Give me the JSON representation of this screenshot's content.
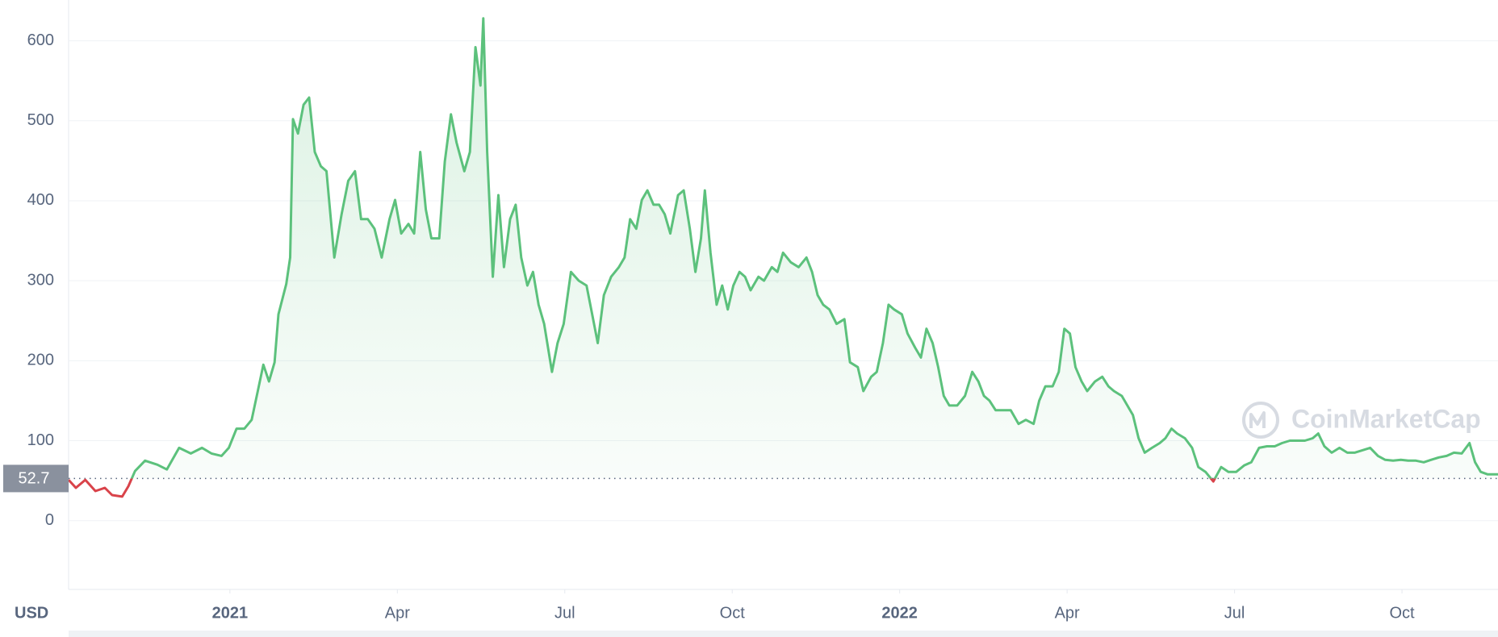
{
  "chart_data": {
    "type": "line",
    "currency_label": "USD",
    "watermark": "CoinMarketCap",
    "color": "#5cc17c",
    "down_color": "#d9434a",
    "reference_line": 52.7,
    "grid": true,
    "xlim": [
      -2.89,
      22.72
    ],
    "xticks": [
      {
        "value": 0,
        "label": "2021"
      },
      {
        "value": 3,
        "label": "Apr"
      },
      {
        "value": 6,
        "label": "Jul"
      },
      {
        "value": 9,
        "label": "Oct"
      },
      {
        "value": 12,
        "label": "2022"
      },
      {
        "value": 15,
        "label": "Apr"
      },
      {
        "value": 18,
        "label": "Jul"
      },
      {
        "value": 21,
        "label": "Oct"
      }
    ],
    "ylim": [
      -86,
      651
    ],
    "yticks": [
      0,
      100,
      200,
      300,
      400,
      500,
      600
    ],
    "x": [
      -2.89,
      -2.76,
      -2.59,
      -2.41,
      -2.24,
      -2.11,
      -1.93,
      -1.82,
      -1.7,
      -1.52,
      -1.3,
      -1.13,
      -0.91,
      -0.7,
      -0.5,
      -0.33,
      -0.15,
      -0.02,
      0.12,
      0.26,
      0.39,
      0.5,
      0.6,
      0.7,
      0.8,
      0.87,
      1.01,
      1.08,
      1.13,
      1.22,
      1.32,
      1.42,
      1.52,
      1.63,
      1.73,
      1.87,
      2.0,
      2.12,
      2.24,
      2.35,
      2.47,
      2.59,
      2.72,
      2.86,
      2.96,
      3.07,
      3.2,
      3.3,
      3.41,
      3.51,
      3.61,
      3.75,
      3.85,
      3.96,
      4.06,
      4.2,
      4.3,
      4.4,
      4.49,
      4.54,
      4.61,
      4.71,
      4.81,
      4.91,
      5.02,
      5.12,
      5.22,
      5.33,
      5.43,
      5.53,
      5.63,
      5.77,
      5.87,
      5.98,
      6.11,
      6.25,
      6.39,
      6.49,
      6.59,
      6.7,
      6.83,
      6.97,
      7.07,
      7.17,
      7.28,
      7.38,
      7.48,
      7.59,
      7.69,
      7.79,
      7.89,
      8.03,
      8.13,
      8.24,
      8.34,
      8.44,
      8.51,
      8.61,
      8.72,
      8.82,
      8.92,
      9.02,
      9.13,
      9.23,
      9.33,
      9.47,
      9.57,
      9.71,
      9.81,
      9.91,
      10.05,
      10.19,
      10.33,
      10.43,
      10.53,
      10.63,
      10.74,
      10.87,
      11.01,
      11.11,
      11.25,
      11.35,
      11.49,
      11.59,
      11.7,
      11.8,
      11.9,
      12.04,
      12.14,
      12.28,
      12.38,
      12.48,
      12.59,
      12.69,
      12.79,
      12.89,
      13.03,
      13.17,
      13.3,
      13.41,
      13.51,
      13.61,
      13.72,
      13.85,
      13.99,
      14.13,
      14.26,
      14.4,
      14.5,
      14.61,
      14.74,
      14.85,
      14.95,
      15.05,
      15.15,
      15.26,
      15.36,
      15.5,
      15.63,
      15.74,
      15.84,
      15.98,
      16.08,
      16.18,
      16.28,
      16.39,
      16.52,
      16.66,
      16.76,
      16.87,
      16.97,
      17.11,
      17.24,
      17.35,
      17.48,
      17.62,
      17.76,
      17.89,
      18.03,
      18.17,
      18.3,
      18.44,
      18.58,
      18.72,
      18.85,
      18.99,
      19.13,
      19.26,
      19.4,
      19.5,
      19.61,
      19.74,
      19.88,
      20.02,
      20.15,
      20.29,
      20.43,
      20.57,
      20.7,
      20.84,
      20.98,
      21.11,
      21.25,
      21.39,
      21.52,
      21.66,
      21.8,
      21.93,
      22.07,
      22.21,
      22.31,
      22.41,
      22.53,
      22.72
    ],
    "values": [
      51,
      41,
      51,
      37,
      41,
      32,
      30,
      43,
      62,
      75,
      70,
      64,
      91,
      84,
      91,
      84,
      81,
      91,
      115,
      115,
      126,
      162,
      195,
      174,
      198,
      258,
      296,
      329,
      502,
      484,
      520,
      529,
      461,
      443,
      437,
      329,
      383,
      425,
      437,
      377,
      377,
      365,
      329,
      377,
      401,
      359,
      371,
      359,
      461,
      389,
      353,
      353,
      449,
      508,
      473,
      437,
      461,
      592,
      544,
      628,
      461,
      305,
      407,
      317,
      377,
      395,
      329,
      294,
      311,
      270,
      246,
      186,
      222,
      246,
      311,
      300,
      294,
      258,
      222,
      282,
      305,
      317,
      329,
      377,
      365,
      401,
      413,
      395,
      395,
      383,
      359,
      407,
      413,
      365,
      311,
      353,
      413,
      335,
      270,
      294,
      264,
      294,
      311,
      305,
      288,
      305,
      300,
      317,
      311,
      335,
      323,
      317,
      329,
      311,
      282,
      270,
      264,
      246,
      252,
      198,
      192,
      162,
      180,
      186,
      222,
      270,
      264,
      258,
      234,
      216,
      204,
      240,
      222,
      192,
      156,
      144,
      144,
      156,
      186,
      174,
      156,
      150,
      138,
      138,
      138,
      121,
      126,
      121,
      150,
      168,
      168,
      186,
      240,
      234,
      192,
      174,
      162,
      174,
      180,
      168,
      162,
      156,
      144,
      132,
      103,
      85,
      91,
      97,
      103,
      115,
      109,
      103,
      91,
      67,
      61,
      49,
      67,
      61,
      61,
      69,
      73,
      91,
      93,
      93,
      97,
      100,
      100,
      100,
      103,
      109,
      93,
      85,
      91,
      85,
      85,
      88,
      91,
      81,
      76,
      75,
      76,
      75,
      75,
      73,
      76,
      79,
      81,
      85,
      84,
      97,
      73,
      61,
      58,
      58
    ]
  }
}
